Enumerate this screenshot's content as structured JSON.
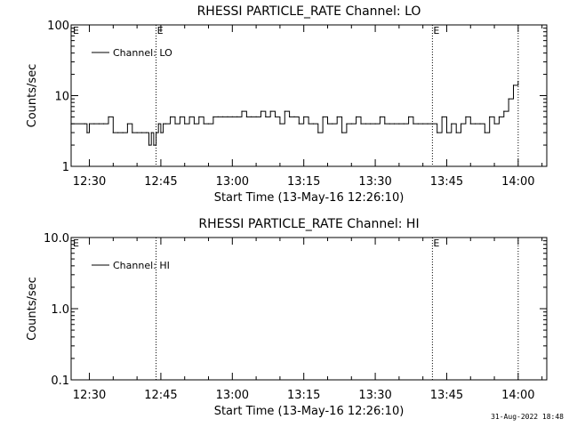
{
  "timestamp": "31-Aug-2022 18:48",
  "chart_data": [
    {
      "type": "line",
      "title": "RHESSI PARTICLE_RATE Channel: LO",
      "xlabel": "Start Time (13-May-16 12:26:10)",
      "ylabel": "Counts/sec",
      "yscale": "log",
      "ylim": [
        1,
        100
      ],
      "yticks": [
        1,
        10,
        100
      ],
      "ytick_labels": [
        "1",
        "10",
        "100"
      ],
      "xlim": [
        "12:26:10",
        "14:06"
      ],
      "xticks": [
        "12:30",
        "12:45",
        "13:00",
        "13:15",
        "13:30",
        "13:45",
        "14:00"
      ],
      "event_markers": [
        {
          "time": "12:44",
          "label": "E"
        },
        {
          "time": "13:42",
          "label": "E"
        },
        {
          "time": "14:00",
          "label": ""
        }
      ],
      "corner_label": "E",
      "legend": {
        "position": "top-left",
        "entries": [
          "Channel: LO"
        ]
      },
      "series": [
        {
          "name": "Channel: LO",
          "x": [
            "12:26:10",
            "12:29",
            "12:29.5",
            "12:30",
            "12:31",
            "12:32",
            "12:33",
            "12:34",
            "12:35",
            "12:36",
            "12:37",
            "12:38",
            "12:39",
            "12:40",
            "12:41",
            "12:42",
            "12:42.5",
            "12:43",
            "12:43.5",
            "12:44",
            "12:44.5",
            "12:45",
            "12:45.5",
            "12:46",
            "12:47",
            "12:48",
            "12:49",
            "12:50",
            "12:51",
            "12:52",
            "12:53",
            "12:54",
            "12:55",
            "12:56",
            "12:57",
            "12:58",
            "12:59",
            "13:00",
            "13:01",
            "13:02",
            "13:03",
            "13:04",
            "13:05",
            "13:06",
            "13:07",
            "13:08",
            "13:09",
            "13:10",
            "13:11",
            "13:12",
            "13:13",
            "13:14",
            "13:15",
            "13:16",
            "13:17",
            "13:18",
            "13:19",
            "13:20",
            "13:21",
            "13:22",
            "13:23",
            "13:24",
            "13:25",
            "13:26",
            "13:27",
            "13:28",
            "13:29",
            "13:30",
            "13:31",
            "13:32",
            "13:33",
            "13:34",
            "13:35",
            "13:36",
            "13:37",
            "13:38",
            "13:39",
            "13:40",
            "13:41",
            "13:42",
            "13:43",
            "13:44",
            "13:45",
            "13:46",
            "13:47",
            "13:48",
            "13:49",
            "13:50",
            "13:51",
            "13:52",
            "13:53",
            "13:54",
            "13:55",
            "13:56",
            "13:57",
            "13:58",
            "13:59",
            "14:00"
          ],
          "y": [
            4,
            4,
            3,
            4,
            4,
            4,
            4,
            5,
            3,
            3,
            3,
            4,
            3,
            3,
            3,
            3,
            2,
            3,
            2,
            3,
            4,
            3,
            4,
            4,
            5,
            4,
            5,
            4,
            5,
            4,
            5,
            4,
            4,
            5,
            5,
            5,
            5,
            5,
            5,
            6,
            5,
            5,
            5,
            6,
            5,
            6,
            5,
            4,
            6,
            5,
            5,
            4,
            5,
            4,
            4,
            3,
            5,
            4,
            4,
            5,
            3,
            4,
            4,
            5,
            4,
            4,
            4,
            4,
            5,
            4,
            4,
            4,
            4,
            4,
            5,
            4,
            4,
            4,
            4,
            4,
            3,
            5,
            3,
            4,
            3,
            4,
            5,
            4,
            4,
            4,
            3,
            5,
            4,
            5,
            6,
            9,
            14,
            16
          ]
        }
      ]
    },
    {
      "type": "line",
      "title": "RHESSI PARTICLE_RATE Channel: HI",
      "xlabel": "Start Time (13-May-16 12:26:10)",
      "ylabel": "Counts/sec",
      "yscale": "log",
      "ylim": [
        0.1,
        10
      ],
      "yticks": [
        0.1,
        1,
        10
      ],
      "ytick_labels": [
        "0.1",
        "1.0",
        "10.0"
      ],
      "xlim": [
        "12:26:10",
        "14:06"
      ],
      "xticks": [
        "12:30",
        "12:45",
        "13:00",
        "13:15",
        "13:30",
        "13:45",
        "14:00"
      ],
      "event_markers": [
        {
          "time": "12:44",
          "label": ""
        },
        {
          "time": "13:42",
          "label": "E"
        },
        {
          "time": "14:00",
          "label": ""
        }
      ],
      "corner_label": "E",
      "legend": {
        "position": "top-left",
        "entries": [
          "Channel: HI"
        ]
      },
      "series": [
        {
          "name": "Channel: HI",
          "x": [],
          "y": []
        }
      ]
    }
  ]
}
